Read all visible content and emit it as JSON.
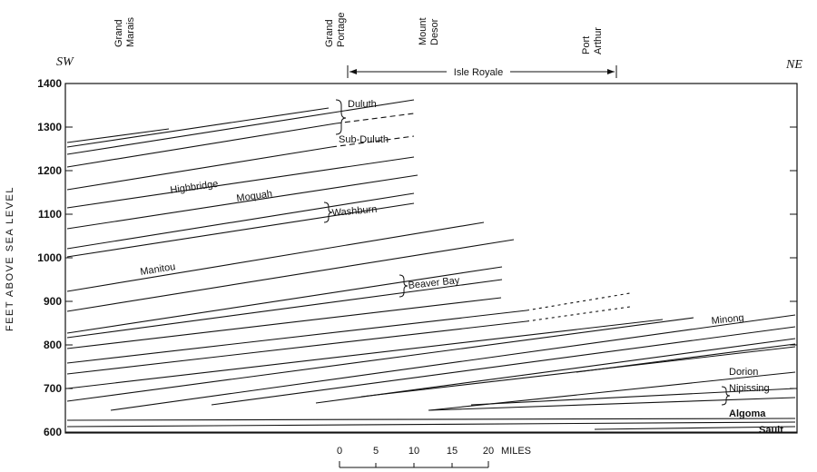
{
  "direction": {
    "left": "SW",
    "right": "NE"
  },
  "y_axis": {
    "label": "FEET ABOVE SEA LEVEL",
    "ticks": [
      1400,
      1300,
      1200,
      1100,
      1000,
      900,
      800,
      700,
      600
    ]
  },
  "locations": [
    {
      "name": "Grand Marais",
      "lines": [
        "Grand",
        "Marais"
      ]
    },
    {
      "name": "Grand Portage",
      "lines": [
        "Grand",
        "Portage"
      ]
    },
    {
      "name": "Mount Desor",
      "lines": [
        "Mount",
        "Desor"
      ]
    },
    {
      "name": "Port Arthur",
      "lines": [
        "Port",
        "Arthur"
      ]
    }
  ],
  "isle_royale": "Isle Royale",
  "scale_bar": {
    "ticks": [
      "0",
      "5",
      "10",
      "15",
      "20"
    ],
    "unit": "MILES"
  },
  "shorelines": {
    "duluth": "Duluth",
    "sub_duluth": "Sub-Duluth",
    "highbridge": "Highbridge",
    "moquah": "Moquah",
    "washburn": "Washburn",
    "manitou": "Manitou",
    "beaver_bay": "Beaver Bay",
    "minong": "Minong",
    "dorion": "Dorion",
    "nipissing": "Nipissing",
    "algoma": "Algoma",
    "sault": "Sault"
  }
}
